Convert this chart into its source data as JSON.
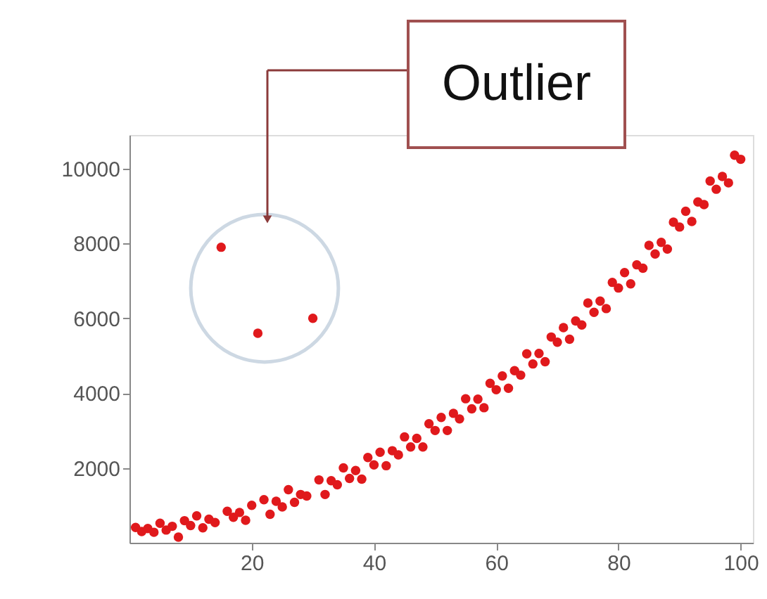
{
  "chart_data": {
    "type": "scatter",
    "x": [
      1,
      2,
      3,
      4,
      5,
      6,
      7,
      8,
      9,
      10,
      11,
      12,
      13,
      14,
      15,
      16,
      17,
      18,
      19,
      20,
      21,
      22,
      23,
      24,
      25,
      26,
      27,
      28,
      29,
      30,
      31,
      32,
      33,
      34,
      35,
      36,
      37,
      38,
      39,
      40,
      41,
      42,
      43,
      44,
      45,
      46,
      47,
      48,
      49,
      50,
      51,
      52,
      53,
      54,
      55,
      56,
      57,
      58,
      59,
      60,
      61,
      62,
      63,
      64,
      65,
      66,
      67,
      68,
      69,
      70,
      71,
      72,
      73,
      74,
      75,
      76,
      77,
      78,
      79,
      80,
      81,
      82,
      83,
      84,
      85,
      86,
      87,
      88,
      89,
      90,
      91,
      92,
      93,
      94,
      95,
      96,
      97,
      98,
      99,
      100
    ],
    "series": [
      {
        "color": "#e0191c",
        "values": [
          410,
          300,
          380,
          280,
          520,
          340,
          440,
          150,
          590,
          460,
          720,
          400,
          630,
          540,
          7900,
          840,
          680,
          810,
          600,
          1000,
          5600,
          1150,
          760,
          1110,
          960,
          1420,
          1080,
          1290,
          1250,
          6000,
          1680,
          1290,
          1660,
          1550,
          2000,
          1720,
          1930,
          1700,
          2280,
          2080,
          2420,
          2060,
          2460,
          2350,
          2830,
          2560,
          2790,
          2560,
          3180,
          3000,
          3350,
          3000,
          3460,
          3310,
          3850,
          3580,
          3840,
          3610,
          4260,
          4090,
          4460,
          4130,
          4600,
          4480,
          5050,
          4780,
          5060,
          4840,
          5500,
          5360,
          5750,
          5440,
          5930,
          5820,
          6410,
          6160,
          6460,
          6260,
          6960,
          6810,
          7220,
          6920,
          7430,
          7340,
          7950,
          7720,
          8030,
          7850,
          8570,
          8440,
          8860,
          8590,
          9110,
          9040,
          9670,
          9450,
          9790,
          9620,
          10360,
          10250
        ]
      }
    ],
    "xlim": [
      0,
      102
    ],
    "xticks": [
      20,
      40,
      60,
      80,
      100
    ],
    "ylim": [
      0,
      10900
    ],
    "yticks": [
      2000,
      4000,
      6000,
      8000,
      10000
    ],
    "grid": false,
    "marker": "circle",
    "annotations": [
      "Outlier"
    ]
  }
}
